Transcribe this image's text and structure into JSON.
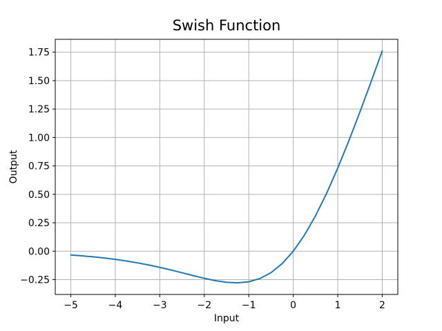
{
  "chart_data": {
    "type": "line",
    "title": "Swish Function",
    "xlabel": "Input",
    "ylabel": "Output",
    "xlim": [
      -5.35,
      2.35
    ],
    "ylim": [
      -0.3804,
      1.8636
    ],
    "grid": true,
    "grid_color": "#b0b0b0",
    "frame_color": "#000000",
    "tick_color": "#000000",
    "text_color": "#000000",
    "background_color": "#ffffff",
    "line_color": "#1f77b4",
    "line_width": 2,
    "x_tick_values": [
      -5,
      -4,
      -3,
      -2,
      -1,
      0,
      1,
      2
    ],
    "x_tick_labels": [
      "−5",
      "−4",
      "−3",
      "−2",
      "−1",
      "0",
      "1",
      "2"
    ],
    "y_tick_values": [
      -0.25,
      0.0,
      0.25,
      0.5,
      0.75,
      1.0,
      1.25,
      1.5,
      1.75
    ],
    "y_tick_labels": [
      "−0.25",
      "0.00",
      "0.25",
      "0.50",
      "0.75",
      "1.00",
      "1.25",
      "1.50",
      "1.75"
    ],
    "legend": "none",
    "series": [
      {
        "name": "swish",
        "x": [
          -5.0,
          -4.75,
          -4.5,
          -4.25,
          -4.0,
          -3.75,
          -3.5,
          -3.25,
          -3.0,
          -2.75,
          -2.5,
          -2.25,
          -2.0,
          -1.75,
          -1.5,
          -1.25,
          -1.0,
          -0.75,
          -0.5,
          -0.25,
          0.0,
          0.25,
          0.5,
          0.75,
          1.0,
          1.25,
          1.5,
          1.75,
          2.0
        ],
        "y": [
          -0.03346,
          -0.04074,
          -0.04944,
          -0.05977,
          -0.07194,
          -0.08617,
          -0.10259,
          -0.12131,
          -0.14228,
          -0.16524,
          -0.18965,
          -0.21454,
          -0.23841,
          -0.25908,
          -0.27364,
          -0.27838,
          -0.26894,
          -0.24062,
          -0.18877,
          -0.10946,
          0.0,
          0.14054,
          0.31123,
          0.50938,
          0.73106,
          0.97163,
          1.22636,
          1.49092,
          1.76159
        ]
      }
    ]
  }
}
